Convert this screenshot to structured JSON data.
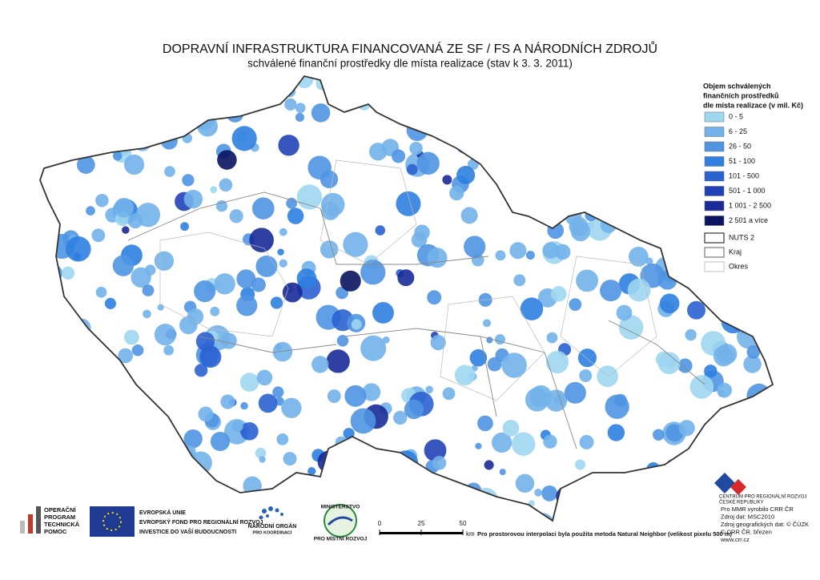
{
  "title": "DOPRAVNÍ INFRASTRUKTURA FINANCOVANÁ ZE SF / FS A NÁRODNÍCH ZDROJŮ",
  "subtitle": "schválené finanční prostředky dle místa realizace (stav k 3. 3. 2011)",
  "legend": {
    "title": [
      "Objem schválených",
      "finančních prostředků",
      "dle místa realizace (v mil. Kč)"
    ],
    "classes": [
      {
        "label": "0 - 5",
        "color": "#9fd6f0"
      },
      {
        "label": "6 - 25",
        "color": "#72b2ea"
      },
      {
        "label": "26 - 50",
        "color": "#4f95e3"
      },
      {
        "label": "51 - 100",
        "color": "#2f80e0"
      },
      {
        "label": "101 - 500",
        "color": "#2a62d2"
      },
      {
        "label": "501 - 1 000",
        "color": "#2142b6"
      },
      {
        "label": "1 001 - 2 500",
        "color": "#1a2a98"
      },
      {
        "label": "2 501 a více",
        "color": "#0b1461"
      }
    ],
    "boundaries": [
      {
        "label": "NUTS 2",
        "color": "#333333"
      },
      {
        "label": "Kraj",
        "color": "#777777"
      },
      {
        "label": "Okres",
        "color": "#cccccc"
      }
    ]
  },
  "scale": {
    "ticks": [
      0,
      25,
      50
    ],
    "unit": "km",
    "note": "Pro prostorovou interpolaci byla použita metoda Natural Neighbor (velikost pixelu 500 m)"
  },
  "credits": {
    "org": [
      "CENTRUM PRO REGIONÁLNÍ ROZVOJ",
      "ČESKÉ REPUBLIKY"
    ],
    "lines": [
      "Pro MMR vyrobilo CRR ČR",
      "Zdroj dat: MSC2010",
      "Zdroj geografických dat: © ČÚZK",
      "© CRR ČR, březen",
      "www.crr.cz"
    ]
  },
  "logos": {
    "op": [
      "OPERAČNÍ",
      "PROGRAM",
      "TECHNICKÁ",
      "POMOC"
    ],
    "eu": [
      "EVROPSKÁ UNIE",
      "EVROPSKÝ FOND PRO REGIONÁLNÍ ROZVOJ",
      "INVESTICE DO VAŠÍ BUDOUCNOSTI"
    ],
    "nok": [
      "NÁRODNÍ ORGÁN",
      "PRO KOORDINACI"
    ],
    "mmr": [
      "MINISTERSTVO",
      "PRO MÍSTNÍ ROZVOJ"
    ]
  }
}
